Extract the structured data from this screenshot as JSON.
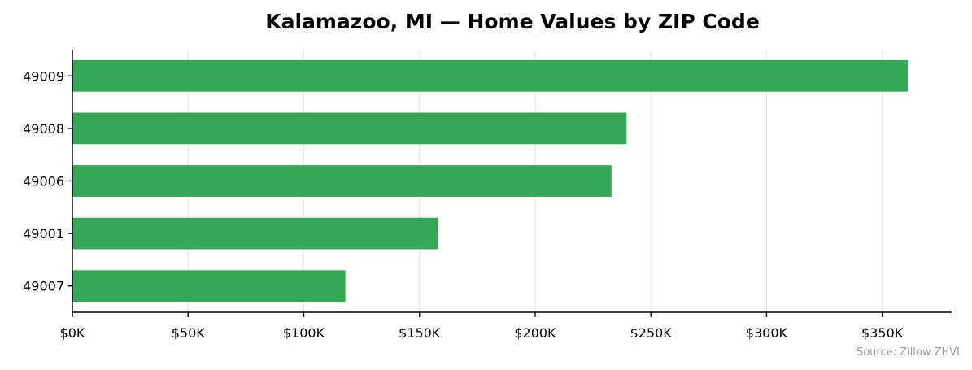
{
  "chart_data": {
    "type": "bar",
    "orientation": "horizontal",
    "title": "Kalamazoo, MI — Home Values by ZIP Code",
    "categories": [
      "49009",
      "49008",
      "49006",
      "49001",
      "49007"
    ],
    "values": [
      361000,
      239500,
      233000,
      158000,
      118000
    ],
    "x_ticks": [
      0,
      50000,
      100000,
      150000,
      200000,
      250000,
      300000,
      350000
    ],
    "x_tick_labels": [
      "$0K",
      "$50K",
      "$100K",
      "$150K",
      "$200K",
      "$250K",
      "$300K",
      "$350K"
    ],
    "xlim": [
      0,
      380000
    ],
    "xlabel": "",
    "ylabel": "",
    "grid": "vertical",
    "bar_color": "#34a853",
    "source": "Source: Zillow ZHVI"
  }
}
